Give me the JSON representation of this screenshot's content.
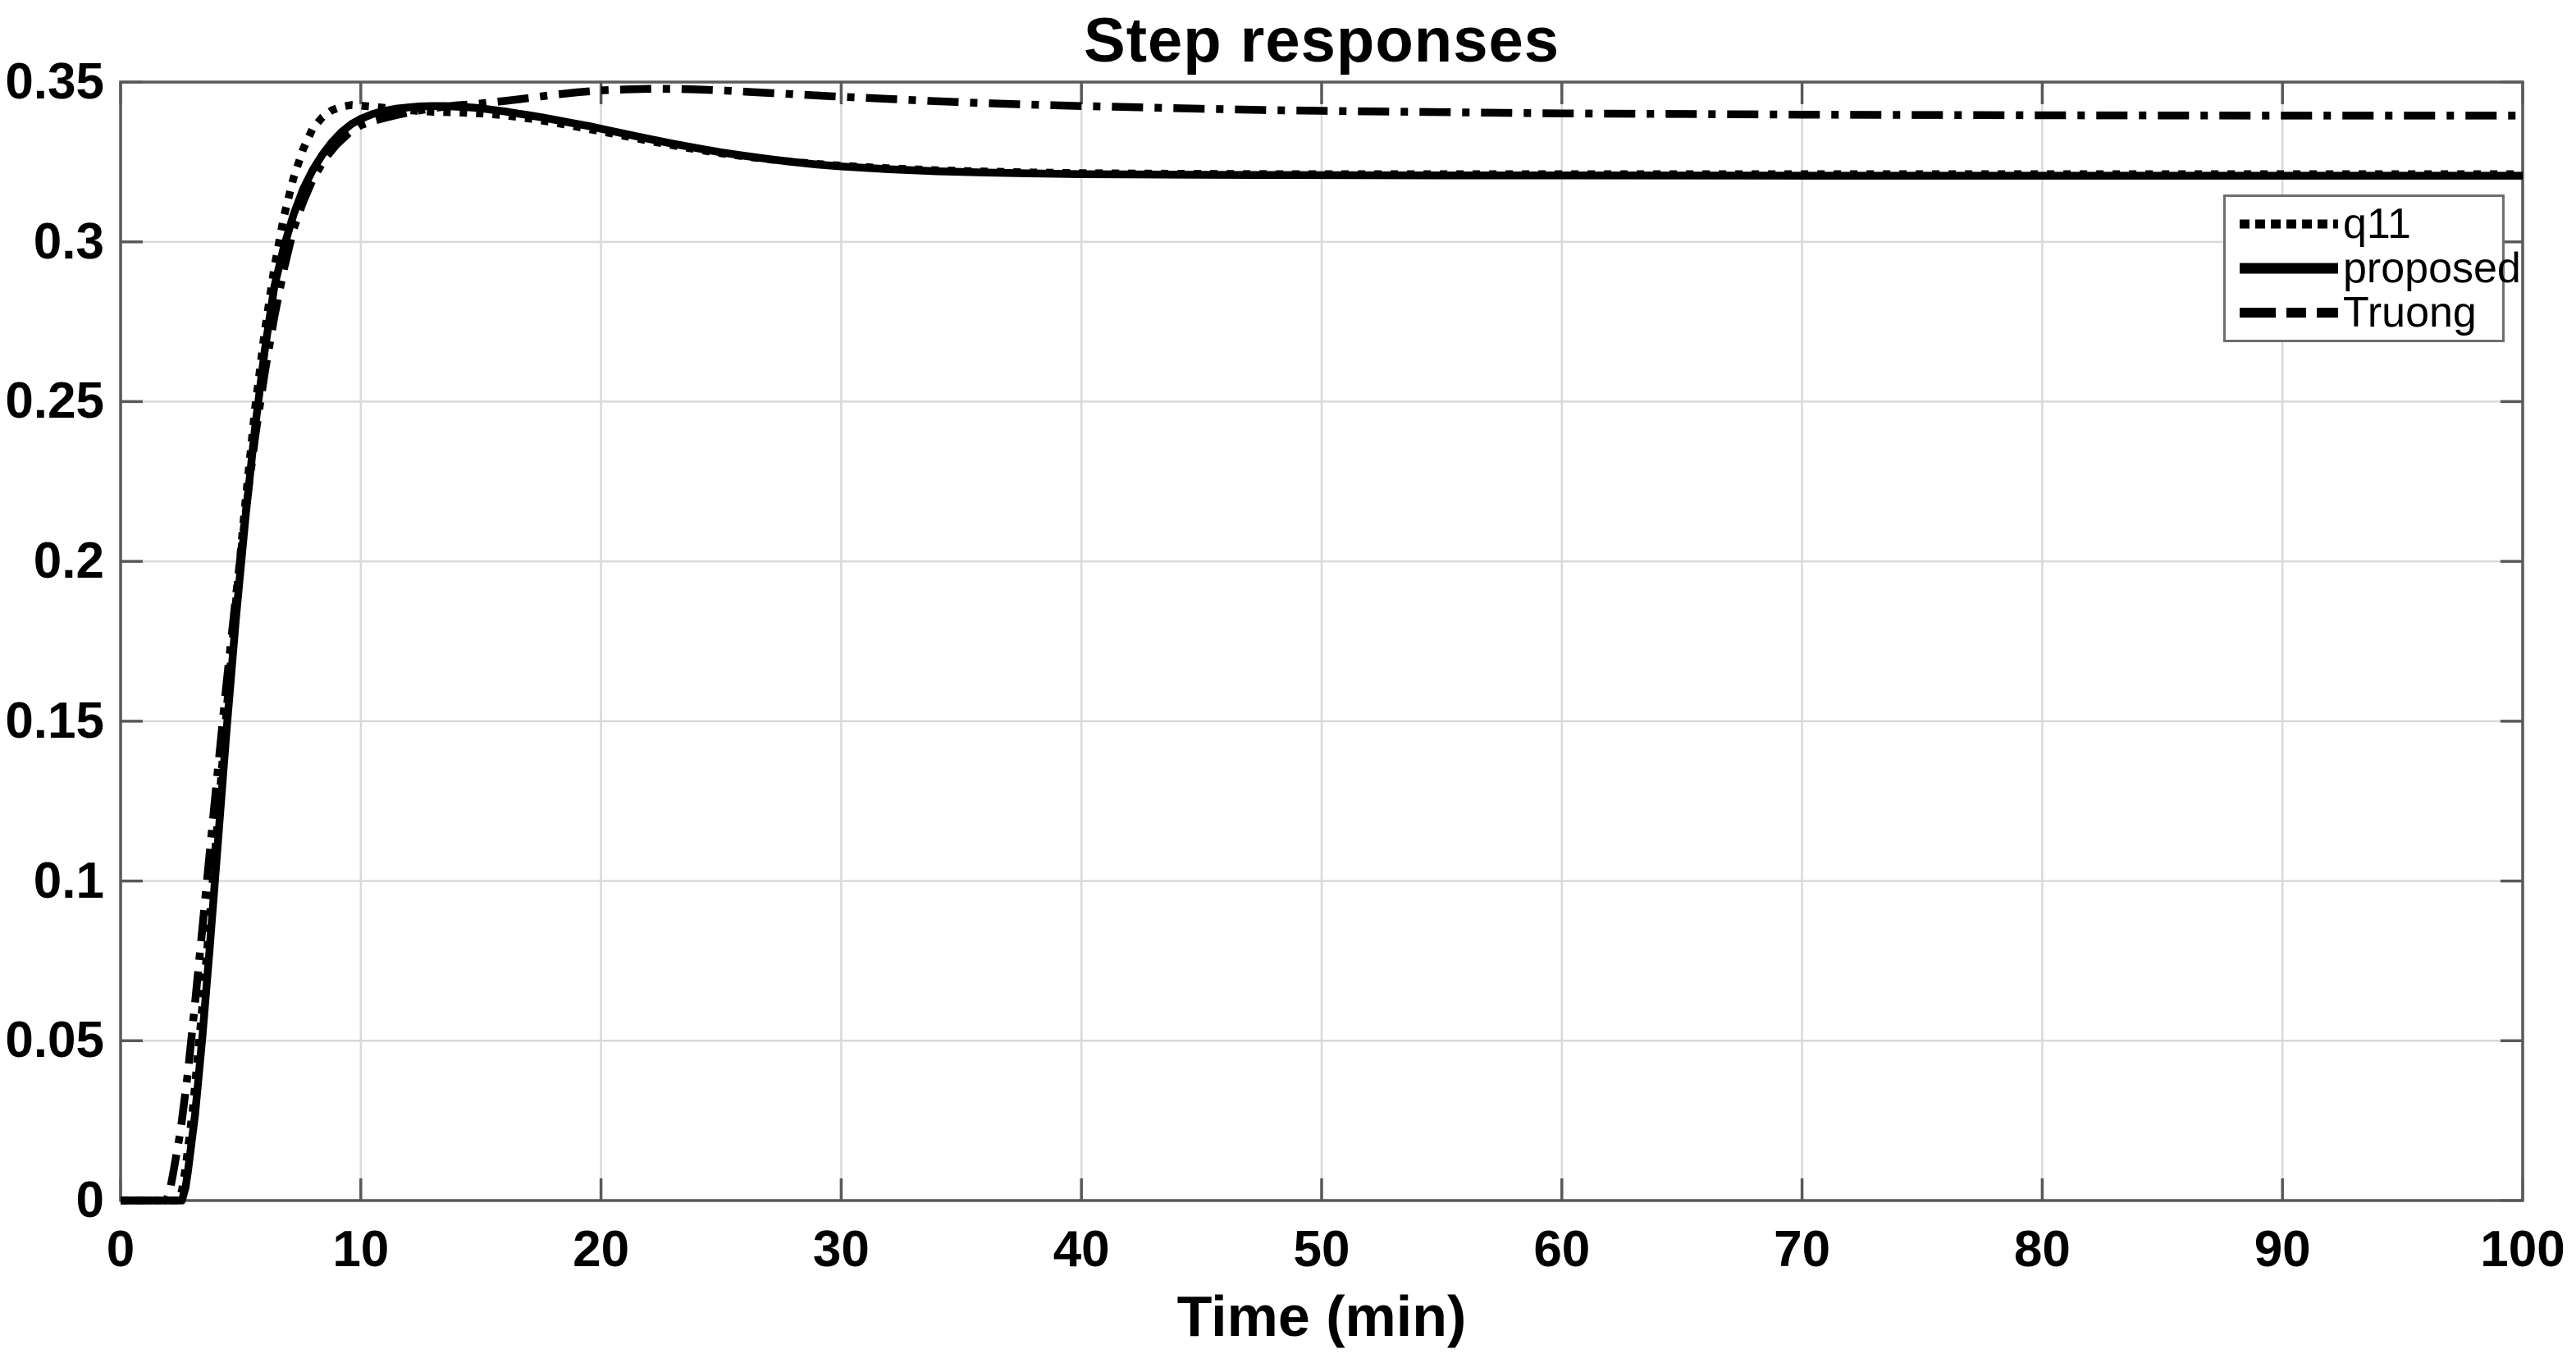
{
  "style": {
    "background": "#ffffff",
    "line_color": "#000000",
    "grid_color": "#d9d9d9",
    "axis_color": "#595959",
    "legend_border_color": "#6e6e6e",
    "text_color": "#000000"
  },
  "chart_data": {
    "type": "line",
    "title": "Step responses",
    "xlabel": "Time (min)",
    "ylabel": "",
    "xlim": [
      0,
      100
    ],
    "ylim": [
      0,
      0.35
    ],
    "grid": true,
    "legend_position": "upper right inside",
    "x_ticks": [
      0,
      10,
      20,
      30,
      40,
      50,
      60,
      70,
      80,
      90,
      100
    ],
    "x_tick_labels": [
      "0",
      "10",
      "20",
      "30",
      "40",
      "50",
      "60",
      "70",
      "80",
      "90",
      "100"
    ],
    "y_ticks": [
      0,
      0.05,
      0.1,
      0.15,
      0.2,
      0.25,
      0.3,
      0.35
    ],
    "y_tick_labels": [
      "0",
      "0.05",
      "0.1",
      "0.15",
      "0.2",
      "0.25",
      "0.3",
      "0.35"
    ],
    "series": [
      {
        "name": "q11",
        "line_style": "dotted",
        "color": "#000000",
        "points": [
          [
            0,
            0
          ],
          [
            2.4,
            0
          ],
          [
            2.55,
            0.003
          ],
          [
            2.7,
            0.01
          ],
          [
            3,
            0.028
          ],
          [
            3.3,
            0.052
          ],
          [
            3.6,
            0.078
          ],
          [
            4,
            0.115
          ],
          [
            4.4,
            0.152
          ],
          [
            4.8,
            0.187
          ],
          [
            5.2,
            0.219
          ],
          [
            5.6,
            0.248
          ],
          [
            6,
            0.272
          ],
          [
            6.4,
            0.292
          ],
          [
            6.8,
            0.308
          ],
          [
            7.2,
            0.32
          ],
          [
            7.6,
            0.329
          ],
          [
            8,
            0.3355
          ],
          [
            8.4,
            0.339
          ],
          [
            8.8,
            0.3412
          ],
          [
            9.2,
            0.3423
          ],
          [
            9.6,
            0.3428
          ],
          [
            10,
            0.3426
          ],
          [
            10.5,
            0.3423
          ],
          [
            11,
            0.3419
          ],
          [
            11.5,
            0.3415
          ],
          [
            12,
            0.3412
          ],
          [
            12.5,
            0.3409
          ],
          [
            13,
            0.3407
          ],
          [
            14,
            0.3405
          ],
          [
            15,
            0.3402
          ],
          [
            16,
            0.3396
          ],
          [
            17,
            0.3386
          ],
          [
            18,
            0.3374
          ],
          [
            19,
            0.336
          ],
          [
            20,
            0.3346
          ],
          [
            21,
            0.3331
          ],
          [
            22,
            0.3316
          ],
          [
            23,
            0.3302
          ],
          [
            24,
            0.3289
          ],
          [
            25,
            0.3277
          ],
          [
            26,
            0.3267
          ],
          [
            27,
            0.3258
          ],
          [
            28,
            0.325
          ],
          [
            29,
            0.3244
          ],
          [
            30,
            0.3238
          ],
          [
            32,
            0.323
          ],
          [
            34,
            0.3224
          ],
          [
            36,
            0.322
          ],
          [
            38,
            0.3217
          ],
          [
            40,
            0.3215
          ],
          [
            44,
            0.3213
          ],
          [
            48,
            0.3212
          ],
          [
            55,
            0.3212
          ],
          [
            60,
            0.3212
          ],
          [
            70,
            0.3212
          ],
          [
            80,
            0.3212
          ],
          [
            90,
            0.3212
          ],
          [
            100,
            0.3212
          ]
        ]
      },
      {
        "name": "proposed",
        "line_style": "solid",
        "color": "#000000",
        "points": [
          [
            0,
            0
          ],
          [
            2.55,
            0
          ],
          [
            2.7,
            0.004
          ],
          [
            2.8,
            0.009
          ],
          [
            3.1,
            0.027
          ],
          [
            3.4,
            0.051
          ],
          [
            3.7,
            0.078
          ],
          [
            4,
            0.107
          ],
          [
            4.4,
            0.146
          ],
          [
            4.8,
            0.182
          ],
          [
            5.2,
            0.214
          ],
          [
            5.6,
            0.242
          ],
          [
            6,
            0.266
          ],
          [
            6.4,
            0.286
          ],
          [
            6.8,
            0.2985
          ],
          [
            7.2,
            0.3085
          ],
          [
            7.6,
            0.3165
          ],
          [
            8,
            0.3225
          ],
          [
            8.4,
            0.3273
          ],
          [
            8.8,
            0.3312
          ],
          [
            9.2,
            0.3344
          ],
          [
            9.6,
            0.3368
          ],
          [
            10,
            0.3385
          ],
          [
            10.5,
            0.34
          ],
          [
            11,
            0.341
          ],
          [
            11.5,
            0.3417
          ],
          [
            12,
            0.3421
          ],
          [
            12.5,
            0.3424
          ],
          [
            13,
            0.3425
          ],
          [
            13.5,
            0.3425
          ],
          [
            14,
            0.3423
          ],
          [
            14.5,
            0.3421
          ],
          [
            15,
            0.3418
          ],
          [
            15.5,
            0.3413
          ],
          [
            16,
            0.3408
          ],
          [
            16.5,
            0.3402
          ],
          [
            17,
            0.3396
          ],
          [
            17.5,
            0.339
          ],
          [
            18,
            0.3383
          ],
          [
            18.5,
            0.3376
          ],
          [
            19,
            0.3369
          ],
          [
            19.5,
            0.3362
          ],
          [
            20,
            0.3354
          ],
          [
            21,
            0.3338
          ],
          [
            22,
            0.3322
          ],
          [
            23,
            0.3307
          ],
          [
            24,
            0.3293
          ],
          [
            25,
            0.328
          ],
          [
            26,
            0.3269
          ],
          [
            27,
            0.3259
          ],
          [
            28,
            0.325
          ],
          [
            29,
            0.3242
          ],
          [
            30,
            0.3236
          ],
          [
            32,
            0.3227
          ],
          [
            34,
            0.3221
          ],
          [
            36,
            0.3217
          ],
          [
            38,
            0.3214
          ],
          [
            40,
            0.3212
          ],
          [
            44,
            0.321
          ],
          [
            48,
            0.3209
          ],
          [
            55,
            0.3208
          ],
          [
            60,
            0.3208
          ],
          [
            70,
            0.3207
          ],
          [
            80,
            0.3207
          ],
          [
            90,
            0.3207
          ],
          [
            100,
            0.3207
          ]
        ]
      },
      {
        "name": "Truong",
        "line_style": "dash-dot",
        "color": "#000000",
        "points": [
          [
            0,
            0
          ],
          [
            1.9,
            0
          ],
          [
            2.05,
            0.003
          ],
          [
            2.2,
            0.009
          ],
          [
            2.5,
            0.022
          ],
          [
            2.8,
            0.04
          ],
          [
            3.1,
            0.062
          ],
          [
            3.4,
            0.085
          ],
          [
            3.7,
            0.108
          ],
          [
            4,
            0.131
          ],
          [
            4.4,
            0.161
          ],
          [
            4.8,
            0.189
          ],
          [
            5.2,
            0.215
          ],
          [
            5.6,
            0.239
          ],
          [
            6,
            0.259
          ],
          [
            6.4,
            0.2765
          ],
          [
            6.8,
            0.2915
          ],
          [
            7.2,
            0.304
          ],
          [
            7.6,
            0.3125
          ],
          [
            8,
            0.3195
          ],
          [
            8.5,
            0.326
          ],
          [
            9,
            0.3305
          ],
          [
            9.5,
            0.334
          ],
          [
            10,
            0.3365
          ],
          [
            10.5,
            0.3378
          ],
          [
            11,
            0.3388
          ],
          [
            11.5,
            0.3397
          ],
          [
            12,
            0.3405
          ],
          [
            12.5,
            0.3412
          ],
          [
            13,
            0.3418
          ],
          [
            13.5,
            0.3423
          ],
          [
            14,
            0.3427
          ],
          [
            14.5,
            0.343
          ],
          [
            15,
            0.3433
          ],
          [
            15.5,
            0.3437
          ],
          [
            16,
            0.3441
          ],
          [
            17,
            0.345
          ],
          [
            18,
            0.346
          ],
          [
            19,
            0.3468
          ],
          [
            20,
            0.3474
          ],
          [
            21,
            0.3477
          ],
          [
            22,
            0.3479
          ],
          [
            23,
            0.3479
          ],
          [
            24,
            0.3477
          ],
          [
            25,
            0.3474
          ],
          [
            26,
            0.347
          ],
          [
            28,
            0.3462
          ],
          [
            30,
            0.3454
          ],
          [
            32,
            0.3447
          ],
          [
            34,
            0.344
          ],
          [
            36,
            0.3434
          ],
          [
            38,
            0.3429
          ],
          [
            40,
            0.3425
          ],
          [
            44,
            0.3418
          ],
          [
            48,
            0.3412
          ],
          [
            52,
            0.3408
          ],
          [
            56,
            0.3405
          ],
          [
            60,
            0.3402
          ],
          [
            65,
            0.34
          ],
          [
            70,
            0.3398
          ],
          [
            80,
            0.3396
          ],
          [
            90,
            0.3395
          ],
          [
            100,
            0.3395
          ]
        ]
      }
    ]
  }
}
